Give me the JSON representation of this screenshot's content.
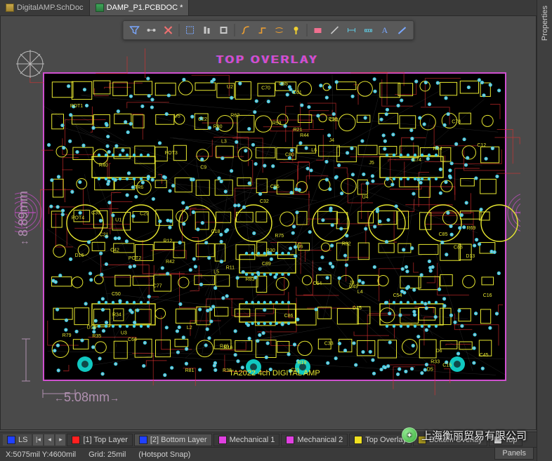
{
  "tabs": [
    {
      "label": "DigitalAMP.SchDoc",
      "active": false,
      "icon": "sch"
    },
    {
      "label": "DAMP_P1.PCBDOC *",
      "active": true,
      "icon": "pcb"
    }
  ],
  "properties_panel_label": "Properties",
  "toolbar": {
    "buttons": [
      "filter",
      "select-conn",
      "clear",
      "marquee",
      "align",
      "grid",
      "route",
      "interactive",
      "diff",
      "tune",
      "highlight",
      "place",
      "line",
      "measure",
      "dimension",
      "text",
      "draw"
    ],
    "colors": {
      "generic": "#c8c8c8",
      "accent1": "#7aa8ff",
      "accent_orange": "#f0a030",
      "accent_yellow": "#f0d030",
      "accent_pink": "#f07090",
      "accent_cyan": "#60c8e0"
    }
  },
  "canvas": {
    "overlay_title": "TOP OVERLAY",
    "board_outline_color": "#d050d0",
    "silkscreen_color": "#e8e830",
    "top_copper_color": "#e03030",
    "pad_color_outer": "#40d0e8",
    "pad_color_inner": "#c0c0c0",
    "bg": "#000000",
    "dim_color": "#b090b0",
    "dim_vertical": "8.89mm",
    "dim_horizontal": "5.08mm",
    "board_title": "TA2022 4ch DIGITAL AMP",
    "target_arcs_color": "#d050d0",
    "mount_hole_color": "#10c8c0",
    "designators": [
      "C32",
      "C33",
      "C18",
      "C36",
      "C22",
      "C21",
      "C54",
      "C70",
      "R11",
      "R12",
      "R16",
      "R44",
      "R46",
      "R62",
      "R69",
      "R53",
      "D5",
      "D6",
      "D13",
      "D14",
      "D15",
      "D16",
      "U2",
      "U4",
      "U1",
      "U3",
      "U5",
      "U6",
      "J3",
      "J5",
      "J4",
      "L2",
      "L3",
      "L4",
      "L5",
      "L6",
      "C39",
      "C29",
      "C49",
      "C50",
      "C42",
      "C45",
      "C66",
      "C56",
      "C74",
      "C80",
      "C81",
      "C61",
      "R21",
      "R24",
      "R30",
      "R19",
      "C11",
      "C12",
      "C15",
      "C16",
      "C9",
      "C85",
      "C86",
      "C78",
      "R33",
      "R75",
      "POT1",
      "POT2",
      "POT3",
      "POT4",
      "R34",
      "R40",
      "R42",
      "R35",
      "R38",
      "R79",
      "R80",
      "R83",
      "R82",
      "R81",
      "C64",
      "C65",
      "C77",
      "TR6",
      "C88",
      "C89"
    ]
  },
  "layers": {
    "ls_label": "LS",
    "tabs": [
      {
        "label": "[1] Top Layer",
        "color": "#ff2020",
        "active": false
      },
      {
        "label": "[2] Bottom Layer",
        "color": "#2040ff",
        "active": true
      },
      {
        "label": "Mechanical 1",
        "color": "#e040e0",
        "active": false
      },
      {
        "label": "Mechanical 2",
        "color": "#e040e0",
        "active": false
      },
      {
        "label": "Top Overlay",
        "color": "#f0e020",
        "active": false
      },
      {
        "label": "Bottom Overlay",
        "color": "#a09020",
        "active": false
      },
      {
        "label": "Top",
        "color": "#d0d0d0",
        "active": false
      }
    ]
  },
  "status": {
    "coords": "X:5075mil Y:4600mil",
    "grid": "Grid: 25mil",
    "snap": "(Hotspot Snap)",
    "panels_label": "Panels"
  },
  "watermark": {
    "text": "上海衡丽贸易有限公司"
  }
}
